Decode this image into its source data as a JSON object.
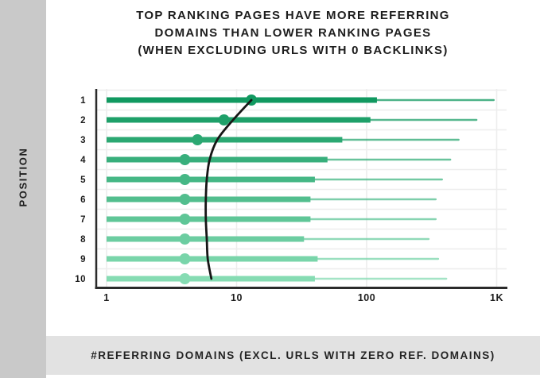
{
  "title": {
    "line1": "TOP RANKING PAGES HAVE MORE REFERRING",
    "line2": "DOMAINS THAN LOWER RANKING PAGES",
    "line3": "(WHEN EXCLUDING URLS WITH 0 BACKLINKS)"
  },
  "y_axis_label": "POSITION",
  "x_axis_caption": "#REFERRING DOMAINS (EXCL. URLS WITH ZERO REF. DOMAINS)",
  "colors": {
    "sidebar_bg": "#c9c9c9",
    "caption_bg": "#e2e2e2",
    "bar_color_top": "#119960",
    "bar_color_bottom": "#86dcb3",
    "trend_curve": "#161616",
    "axis": "#2b2b2b",
    "gridline": "#ededed",
    "text": "#1d1d1d"
  },
  "chart_data": {
    "type": "bar",
    "orientation": "horizontal",
    "x_scale": "log",
    "title": "TOP RANKING PAGES HAVE MORE REFERRING DOMAINS THAN LOWER RANKING PAGES (WHEN EXCLUDING URLS WITH 0 BACKLINKS)",
    "xlabel": "#REFERRING DOMAINS (EXCL. URLS WITH ZERO REF. DOMAINS)",
    "ylabel": "POSITION",
    "x_ticks": [
      {
        "label": "1",
        "value": 1
      },
      {
        "label": "10",
        "value": 10
      },
      {
        "label": "100",
        "value": 100
      },
      {
        "label": "1K",
        "value": 1000
      }
    ],
    "xlim": [
      1,
      1200
    ],
    "grid": true,
    "legend": false,
    "categories": [
      "1",
      "2",
      "3",
      "4",
      "5",
      "6",
      "7",
      "8",
      "9",
      "10"
    ],
    "bar_start_value": 1,
    "series": [
      {
        "name": "median_referring_domains",
        "values": [
          13,
          8,
          5,
          4,
          4,
          4,
          4,
          4,
          4,
          4
        ]
      },
      {
        "name": "thick_bar_end",
        "values": [
          120,
          107,
          65,
          50,
          40,
          37,
          37,
          33,
          42,
          40
        ]
      },
      {
        "name": "thin_whisker_end",
        "values": [
          950,
          700,
          510,
          440,
          380,
          340,
          340,
          300,
          355,
          410
        ]
      },
      {
        "name": "trend_curve",
        "values": [
          13,
          9.4,
          7.1,
          6.2,
          5.9,
          5.8,
          5.8,
          5.9,
          6.0,
          6.4
        ]
      }
    ]
  }
}
